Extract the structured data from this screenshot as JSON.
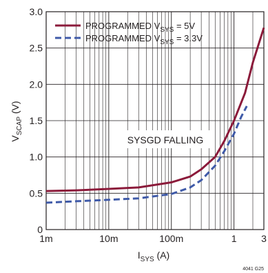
{
  "chart_data": {
    "type": "line",
    "x_scale": "log",
    "xlim": [
      0.001,
      3
    ],
    "ylim": [
      0,
      3.0
    ],
    "x_ticks": [
      {
        "value": 0.001,
        "label": "1m"
      },
      {
        "value": 0.01,
        "label": "10m"
      },
      {
        "value": 0.1,
        "label": "100m"
      },
      {
        "value": 1,
        "label": "1"
      },
      {
        "value": 3,
        "label": "3"
      }
    ],
    "y_ticks": [
      {
        "value": 0,
        "label": "0"
      },
      {
        "value": 0.5,
        "label": "0.5"
      },
      {
        "value": 1.0,
        "label": "1.0"
      },
      {
        "value": 1.5,
        "label": "1.5"
      },
      {
        "value": 2.0,
        "label": "2.0"
      },
      {
        "value": 2.5,
        "label": "2.5"
      },
      {
        "value": 3.0,
        "label": "3.0"
      }
    ],
    "xlabel": {
      "main": "I",
      "sub": "SYS",
      "tail": " (A)"
    },
    "ylabel": {
      "main": "V",
      "sub": "SCAP",
      "tail": " (V)"
    },
    "grid": true,
    "legend_position": "top-left",
    "annotation": "SYSGD FALLING",
    "figure_id": "4041 G25",
    "series": [
      {
        "name_main": "PROGRAMMED V",
        "name_sub": "SYS",
        "name_tail": " = 5V",
        "color": "#8b1a3a",
        "style": "solid",
        "x": [
          0.001,
          0.003,
          0.01,
          0.03,
          0.1,
          0.2,
          0.3,
          0.5,
          0.7,
          1.0,
          1.5,
          2.0,
          3.0
        ],
        "y": [
          0.53,
          0.54,
          0.56,
          0.58,
          0.65,
          0.73,
          0.83,
          1.0,
          1.22,
          1.5,
          1.88,
          2.3,
          2.78
        ]
      },
      {
        "name_main": "PROGRAMMED V",
        "name_sub": "SYS",
        "name_tail": " = 3.3V",
        "color": "#3f5aa8",
        "style": "dashed",
        "x": [
          0.001,
          0.003,
          0.01,
          0.03,
          0.1,
          0.2,
          0.3,
          0.5,
          0.7,
          1.0,
          1.3,
          1.6
        ],
        "y": [
          0.37,
          0.39,
          0.41,
          0.43,
          0.49,
          0.58,
          0.68,
          0.88,
          1.08,
          1.32,
          1.55,
          1.7
        ]
      }
    ]
  }
}
